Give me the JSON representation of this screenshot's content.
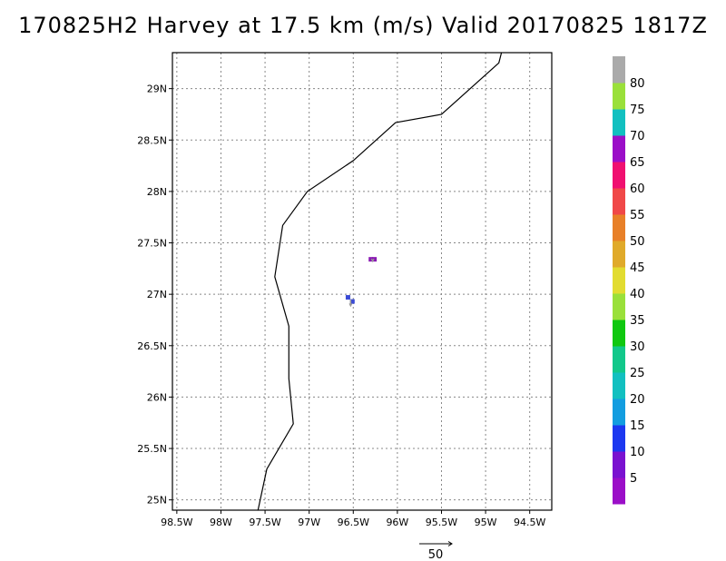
{
  "title": "170825H2 Harvey at 17.5 km (m/s) Valid 20170825 1817Z",
  "chart_data": {
    "type": "map",
    "xlim": [
      -98.55,
      -94.25
    ],
    "ylim": [
      24.9,
      29.35
    ],
    "x_ticks": [
      -98.5,
      -98,
      -97.5,
      -97,
      -96.5,
      -96,
      -95.5,
      -95,
      -94.5
    ],
    "x_tick_labels": [
      "98.5W",
      "98W",
      "97.5W",
      "97W",
      "96.5W",
      "96W",
      "95.5W",
      "95W",
      "94.5W"
    ],
    "y_ticks": [
      25,
      25.5,
      26,
      26.5,
      27,
      27.5,
      28,
      28.5,
      29
    ],
    "y_tick_labels": [
      "25N",
      "25.5N",
      "26N",
      "26.5N",
      "27N",
      "27.5N",
      "28N",
      "28.5N",
      "29N"
    ],
    "grid": true,
    "coastline": [
      [
        -97.58,
        24.9
      ],
      [
        -97.48,
        25.3
      ],
      [
        -97.18,
        25.74
      ],
      [
        -97.23,
        26.18
      ],
      [
        -97.23,
        26.69
      ],
      [
        -97.39,
        27.17
      ],
      [
        -97.3,
        27.67
      ],
      [
        -97.02,
        28.0
      ],
      [
        -96.5,
        28.3
      ],
      [
        -96.02,
        28.67
      ],
      [
        -95.5,
        28.75
      ],
      [
        -94.85,
        29.25
      ],
      [
        -94.82,
        29.35
      ]
    ],
    "speed_cells": [
      {
        "lon": -96.56,
        "lat": 26.97,
        "value": 12,
        "color": "#3b4bd6"
      },
      {
        "lon": -96.51,
        "lat": 26.93,
        "value": 12,
        "color": "#3b4bd6"
      },
      {
        "lon": -96.3,
        "lat": 27.34,
        "value": 68,
        "color": "#8a1ab3"
      },
      {
        "lon": -96.26,
        "lat": 27.34,
        "value": 68,
        "color": "#8a1ab3"
      }
    ],
    "wind_vectors": [
      {
        "lon": -96.53,
        "lat": 26.95,
        "u": 0,
        "v": -10
      },
      {
        "lon": -96.28,
        "lat": 27.34,
        "u": 0,
        "v": -3
      }
    ],
    "reference_vector": {
      "label": "50",
      "speed": 50
    },
    "colorbar": {
      "colors": [
        "#9b0fc8",
        "#7a12d0",
        "#1c38f0",
        "#139de0",
        "#12c0c0",
        "#12c88a",
        "#10c810",
        "#9ae03a",
        "#e2dc30",
        "#e0aa2a",
        "#e88028",
        "#f04848",
        "#f01070",
        "#9b0fc8",
        "#12c0c0",
        "#9ae03a",
        "#aaaaaa"
      ],
      "labels": [
        "5",
        "10",
        "15",
        "20",
        "25",
        "30",
        "35",
        "40",
        "45",
        "50",
        "55",
        "60",
        "65",
        "70",
        "75",
        "80"
      ]
    }
  }
}
